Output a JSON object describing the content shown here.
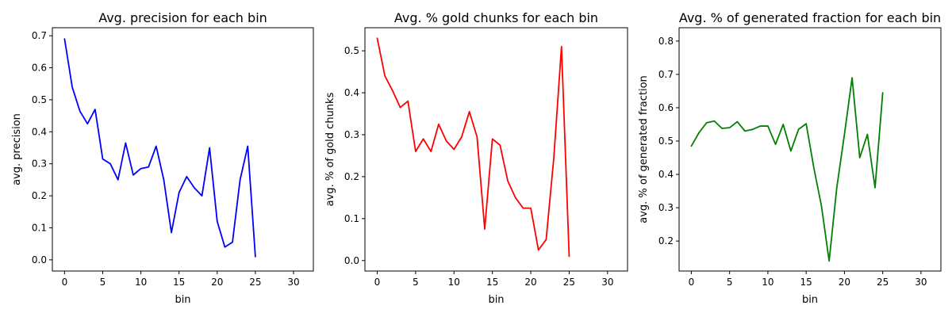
{
  "chart_data": [
    {
      "type": "line",
      "title": "Avg. precision for each bin",
      "xlabel": "bin",
      "ylabel": "avg. precision",
      "xlim": [
        -1.6,
        32.6
      ],
      "ylim": [
        -0.035,
        0.725
      ],
      "xticks": [
        0,
        5,
        10,
        15,
        20,
        25,
        30
      ],
      "yticks": [
        0.0,
        0.1,
        0.2,
        0.3,
        0.4,
        0.5,
        0.6,
        0.7
      ],
      "ytick_labels": [
        "0.0",
        "0.1",
        "0.2",
        "0.3",
        "0.4",
        "0.5",
        "0.6",
        "0.7"
      ],
      "grid": false,
      "color": "#0000ff",
      "x": [
        0,
        1,
        2,
        3,
        4,
        5,
        6,
        7,
        8,
        9,
        10,
        11,
        12,
        13,
        14,
        15,
        16,
        17,
        18,
        19,
        20,
        21,
        22,
        23,
        24,
        25
      ],
      "y": [
        0.69,
        0.54,
        0.465,
        0.425,
        0.47,
        0.315,
        0.3,
        0.25,
        0.365,
        0.265,
        0.285,
        0.29,
        0.355,
        0.25,
        0.085,
        0.21,
        0.26,
        0.225,
        0.2,
        0.35,
        0.12,
        0.04,
        0.055,
        0.25,
        0.355,
        0.01
      ]
    },
    {
      "type": "line",
      "title": "Avg. % gold chunks for each bin",
      "xlabel": "bin",
      "ylabel": "avg. % of gold chunks",
      "xlim": [
        -1.6,
        32.6
      ],
      "ylim": [
        -0.025,
        0.555
      ],
      "xticks": [
        0,
        5,
        10,
        15,
        20,
        25,
        30
      ],
      "yticks": [
        0.0,
        0.1,
        0.2,
        0.3,
        0.4,
        0.5
      ],
      "ytick_labels": [
        "0.0",
        "0.1",
        "0.2",
        "0.3",
        "0.4",
        "0.5"
      ],
      "grid": false,
      "color": "#ff0000",
      "x": [
        0,
        1,
        2,
        3,
        4,
        5,
        6,
        7,
        8,
        9,
        10,
        11,
        12,
        13,
        14,
        15,
        16,
        17,
        18,
        19,
        20,
        21,
        22,
        23,
        24,
        25
      ],
      "y": [
        0.53,
        0.44,
        0.405,
        0.365,
        0.38,
        0.26,
        0.29,
        0.26,
        0.325,
        0.285,
        0.265,
        0.295,
        0.355,
        0.295,
        0.075,
        0.29,
        0.275,
        0.19,
        0.15,
        0.125,
        0.125,
        0.025,
        0.05,
        0.245,
        0.51,
        0.01
      ]
    },
    {
      "type": "line",
      "title": "Avg. % of generated fraction for each bin",
      "xlabel": "bin",
      "ylabel": "avg. % of generated fraction",
      "xlim": [
        -1.6,
        32.6
      ],
      "ylim": [
        0.11,
        0.84
      ],
      "xticks": [
        0,
        5,
        10,
        15,
        20,
        25,
        30
      ],
      "yticks": [
        0.2,
        0.3,
        0.4,
        0.5,
        0.6,
        0.7,
        0.8
      ],
      "ytick_labels": [
        "0.2",
        "0.3",
        "0.4",
        "0.5",
        "0.6",
        "0.7",
        "0.8"
      ],
      "grid": false,
      "color": "#008000",
      "x": [
        0,
        1,
        2,
        3,
        4,
        5,
        6,
        7,
        8,
        9,
        10,
        11,
        12,
        13,
        14,
        15,
        16,
        17,
        18,
        19,
        20,
        21,
        22,
        23,
        24,
        25
      ],
      "y": [
        0.485,
        0.525,
        0.555,
        0.56,
        0.538,
        0.54,
        0.558,
        0.53,
        0.535,
        0.545,
        0.545,
        0.49,
        0.55,
        0.47,
        0.535,
        0.552,
        0.42,
        0.305,
        0.14,
        0.36,
        0.52,
        0.69,
        0.45,
        0.52,
        0.36,
        0.645
      ]
    }
  ]
}
